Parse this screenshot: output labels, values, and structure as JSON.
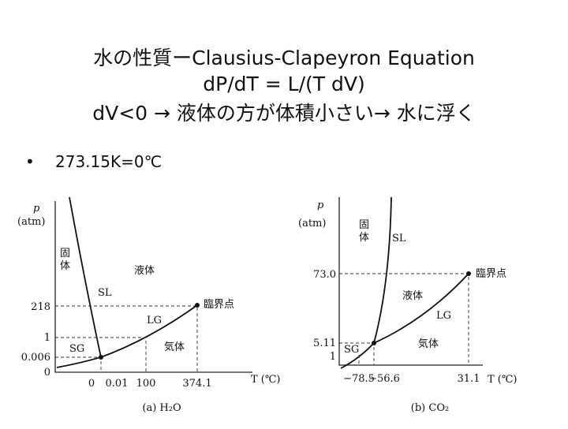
{
  "slide": {
    "title_lines": [
      "水の性質ーClausius-Clapeyron Equation",
      "dP/dT = L/(T dV)",
      "dV<0 → 液体の方が体積小さい→ 水に浮く"
    ],
    "bullets": [
      "273.15K=0℃"
    ],
    "diagrams": [
      {
        "axis_y": "p",
        "axis_y_unit": "(atm)",
        "axis_x": "T (℃)",
        "caption": "(a) H₂O",
        "regions": [
          "固",
          "体",
          "液体",
          "気体"
        ],
        "curves": [
          "SL",
          "LG",
          "SG"
        ],
        "point": "臨界点",
        "p_labels": [
          "218",
          "1",
          "0.006",
          "0"
        ],
        "t_labels": [
          "0",
          "0.01",
          "100",
          "374.1"
        ]
      },
      {
        "axis_y": "p",
        "axis_y_unit": "(atm)",
        "axis_x": "T (℃)",
        "caption": "(b) CO₂",
        "regions": [
          "固",
          "体",
          "液体",
          "気体"
        ],
        "curves": [
          "SL",
          "LG",
          "SG"
        ],
        "point": "臨界点",
        "p_labels": [
          "73.0",
          "5.11",
          "1"
        ],
        "t_labels": [
          "−78.5",
          "−56.6",
          "31.1"
        ]
      }
    ]
  }
}
